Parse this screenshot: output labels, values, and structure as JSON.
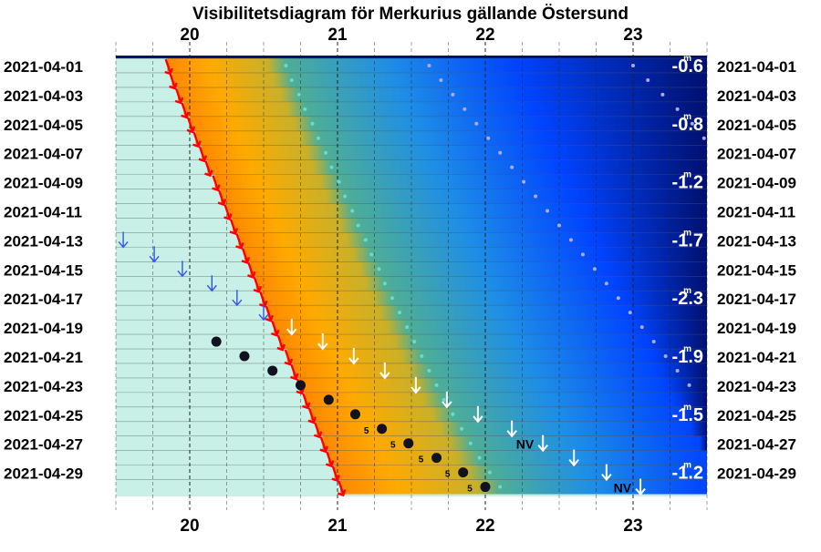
{
  "chart_data": {
    "type": "visibility-diagram",
    "title": "Visibilitetsdiagram för Merkurius gällande Östersund",
    "x_axis": {
      "label": "",
      "range": [
        19.5,
        23.5
      ],
      "ticks": [
        20,
        21,
        22,
        23
      ]
    },
    "dates": [
      "2021-04-01",
      "2021-04-02",
      "2021-04-03",
      "2021-04-04",
      "2021-04-05",
      "2021-04-06",
      "2021-04-07",
      "2021-04-08",
      "2021-04-09",
      "2021-04-10",
      "2021-04-11",
      "2021-04-12",
      "2021-04-13",
      "2021-04-14",
      "2021-04-15",
      "2021-04-16",
      "2021-04-17",
      "2021-04-18",
      "2021-04-19",
      "2021-04-20",
      "2021-04-21",
      "2021-04-22",
      "2021-04-23",
      "2021-04-24",
      "2021-04-25",
      "2021-04-26",
      "2021-04-27",
      "2021-04-28",
      "2021-04-29",
      "2021-04-30"
    ],
    "date_labels": [
      "2021-04-01",
      "2021-04-03",
      "2021-04-05",
      "2021-04-07",
      "2021-04-09",
      "2021-04-11",
      "2021-04-13",
      "2021-04-15",
      "2021-04-17",
      "2021-04-19",
      "2021-04-21",
      "2021-04-23",
      "2021-04-25",
      "2021-04-27",
      "2021-04-29"
    ],
    "sunset": [
      19.85,
      19.88,
      19.92,
      19.96,
      20.0,
      20.04,
      20.08,
      20.12,
      20.17,
      20.21,
      20.25,
      20.29,
      20.33,
      20.37,
      20.41,
      20.45,
      20.49,
      20.53,
      20.57,
      20.61,
      20.66,
      20.7,
      20.74,
      20.78,
      20.82,
      20.86,
      20.9,
      20.94,
      20.98,
      21.02
    ],
    "mercury_set": [
      null,
      null,
      null,
      null,
      null,
      null,
      null,
      null,
      null,
      null,
      null,
      null,
      19.55,
      19.76,
      19.95,
      20.15,
      20.32,
      20.5,
      20.69,
      20.9,
      21.11,
      21.32,
      21.53,
      21.74,
      21.95,
      22.18,
      22.39,
      22.6,
      22.82,
      23.05
    ],
    "mercury_set_marks": [
      null,
      null,
      null,
      null,
      null,
      null,
      null,
      null,
      null,
      null,
      null,
      null,
      null,
      null,
      null,
      null,
      null,
      null,
      null,
      null,
      null,
      null,
      null,
      null,
      null,
      null,
      "NV",
      null,
      null,
      "NV"
    ],
    "mercury_pos": [
      null,
      null,
      null,
      null,
      null,
      null,
      null,
      null,
      null,
      null,
      null,
      null,
      null,
      null,
      null,
      null,
      null,
      null,
      null,
      20.18,
      20.37,
      20.56,
      20.75,
      20.94,
      21.12,
      21.3,
      21.48,
      21.67,
      21.85,
      22.0
    ],
    "mercury_pos_labels": [
      null,
      null,
      null,
      null,
      null,
      null,
      null,
      null,
      null,
      null,
      null,
      null,
      null,
      null,
      null,
      null,
      null,
      null,
      null,
      null,
      null,
      null,
      null,
      null,
      null,
      "5",
      "5",
      "5",
      "5",
      "5"
    ],
    "twilight_civil": [
      20.65,
      20.69,
      20.74,
      20.78,
      20.83,
      20.87,
      20.92,
      20.96,
      21.01,
      21.05,
      21.1,
      21.14,
      21.19,
      21.23,
      21.28,
      21.32,
      21.37,
      21.42,
      21.47,
      21.52,
      21.57,
      21.62,
      21.67,
      21.72,
      21.78,
      21.84,
      21.9,
      21.96,
      22.03,
      22.1
    ],
    "twilight_nautical": [
      21.62,
      21.7,
      21.78,
      21.86,
      21.94,
      22.02,
      22.1,
      22.18,
      22.26,
      22.34,
      22.42,
      22.5,
      22.58,
      22.66,
      22.74,
      22.82,
      22.9,
      22.98,
      23.06,
      23.14,
      23.22,
      23.3,
      23.38,
      null,
      null,
      null,
      null,
      null,
      null,
      null
    ],
    "twilight_astro": [
      23.0,
      23.1,
      23.2,
      23.3,
      23.4,
      23.48,
      null,
      null,
      null,
      null,
      null,
      null,
      null,
      null,
      null,
      null,
      null,
      null,
      null,
      null,
      null,
      null,
      null,
      null,
      null,
      null,
      null,
      null,
      null,
      null
    ],
    "magnitudes": [
      {
        "date_index": 0,
        "text": "-0.6",
        "sup": "m"
      },
      {
        "date_index": 4,
        "text": "-0.8",
        "sup": "m"
      },
      {
        "date_index": 8,
        "text": "-1.2",
        "sup": "m"
      },
      {
        "date_index": 12,
        "text": "-1.7",
        "sup": "m"
      },
      {
        "date_index": 16,
        "text": "-2.3",
        "sup": "m"
      },
      {
        "date_index": 20,
        "text": "-1.9",
        "sup": "m"
      },
      {
        "date_index": 24,
        "text": "-1.5",
        "sup": "m"
      },
      {
        "date_index": 28,
        "text": "-1.2",
        "sup": "m"
      }
    ],
    "colors": {
      "day": "#c8f0e6",
      "sunset_arrow": "#ff0000",
      "set_arrow_day": "#3355ee",
      "set_arrow_night": "#ffffff",
      "twilight_dots": "#66ddcc",
      "night_dots": "#aaaaee",
      "mercury_dot": "#111122",
      "gradient_orange": "#ffaa00",
      "gradient_blue": "#0044ff",
      "gradient_darkblue": "#001070"
    }
  }
}
